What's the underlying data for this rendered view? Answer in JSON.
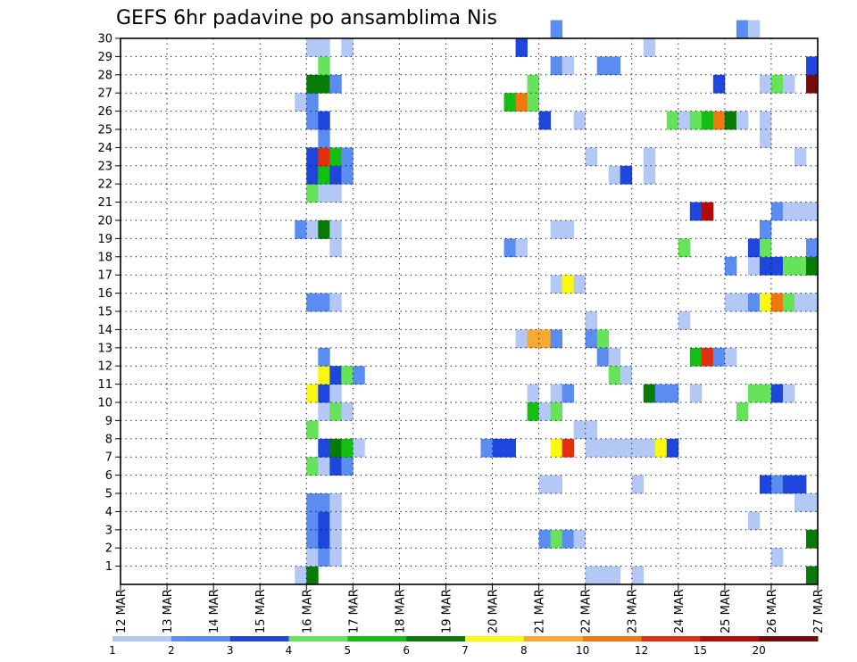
{
  "chart_data": {
    "type": "heatmap",
    "title": "GEFS 6hr padavine po ansamblima Nis",
    "xlabel": "",
    "ylabel": "",
    "x_tick_labels": [
      "12 MAR",
      "13 MAR",
      "14 MAR",
      "15 MAR",
      "16 MAR",
      "17 MAR",
      "18 MAR",
      "19 MAR",
      "20 MAR",
      "21 MAR",
      "22 MAR",
      "23 MAR",
      "24 MAR",
      "25 MAR",
      "26 MAR",
      "27 MAR"
    ],
    "y_tick_labels": [
      "1",
      "2",
      "3",
      "4",
      "5",
      "6",
      "7",
      "8",
      "9",
      "10",
      "11",
      "12",
      "13",
      "14",
      "15",
      "16",
      "17",
      "18",
      "19",
      "20",
      "21",
      "22",
      "23",
      "24",
      "25",
      "26",
      "27",
      "28",
      "29",
      "30"
    ],
    "time_steps_per_day": 4,
    "ensemble_members": 30,
    "grid": "dotted",
    "colorbar": {
      "labels": [
        "1",
        "2",
        "3",
        "4",
        "5",
        "6",
        "7",
        "8",
        "10",
        "12",
        "15",
        "20"
      ],
      "colors": [
        "#b3c8f5",
        "#5b8cf0",
        "#1e46dc",
        "#66e35a",
        "#14be14",
        "#087a08",
        "#f8f810",
        "#f8aa30",
        "#f07810",
        "#e03010",
        "#b40a0a",
        "#780a0a"
      ]
    },
    "cells": [
      [
        15.75,
        0,
        0
      ],
      [
        16,
        0,
        5
      ],
      [
        16,
        1,
        0
      ],
      [
        16.25,
        1,
        1
      ],
      [
        16.5,
        1,
        0
      ],
      [
        16,
        2,
        1
      ],
      [
        16.25,
        2,
        2
      ],
      [
        16.5,
        2,
        0
      ],
      [
        16,
        3,
        1
      ],
      [
        16.25,
        3,
        2
      ],
      [
        16.5,
        3,
        0
      ],
      [
        16,
        4,
        1
      ],
      [
        16.25,
        4,
        1
      ],
      [
        16.5,
        4,
        0
      ],
      [
        16,
        6,
        3
      ],
      [
        16.25,
        6,
        0
      ],
      [
        16.5,
        6,
        2
      ],
      [
        16.75,
        6,
        1
      ],
      [
        16.25,
        7,
        2
      ],
      [
        16.5,
        7,
        5
      ],
      [
        16.75,
        7,
        4
      ],
      [
        17,
        7,
        0
      ],
      [
        16,
        8,
        3
      ],
      [
        16.25,
        9,
        0
      ],
      [
        16.5,
        9,
        3
      ],
      [
        16.75,
        9,
        0
      ],
      [
        16,
        10,
        6
      ],
      [
        16.25,
        10,
        2
      ],
      [
        16.5,
        10,
        0
      ],
      [
        16.25,
        11,
        6
      ],
      [
        16.5,
        11,
        2
      ],
      [
        16.75,
        11,
        3
      ],
      [
        17,
        11,
        1
      ],
      [
        16.25,
        12,
        1
      ],
      [
        16,
        15,
        1
      ],
      [
        16.25,
        15,
        1
      ],
      [
        16.5,
        15,
        0
      ],
      [
        16.5,
        18,
        0
      ],
      [
        15.75,
        19,
        1
      ],
      [
        16,
        19,
        0
      ],
      [
        16.25,
        19,
        5
      ],
      [
        16.5,
        19,
        0
      ],
      [
        16,
        21,
        3
      ],
      [
        16.25,
        21,
        0
      ],
      [
        16.5,
        21,
        0
      ],
      [
        16,
        22,
        2
      ],
      [
        16.25,
        22,
        4
      ],
      [
        16.5,
        22,
        2
      ],
      [
        16.75,
        22,
        1
      ],
      [
        16,
        23,
        2
      ],
      [
        16.25,
        23,
        9
      ],
      [
        16.5,
        23,
        4
      ],
      [
        16.75,
        23,
        1
      ],
      [
        16.25,
        24,
        1
      ],
      [
        16,
        25,
        1
      ],
      [
        16.25,
        25,
        2
      ],
      [
        15.75,
        26,
        0
      ],
      [
        16,
        26,
        1
      ],
      [
        16,
        27,
        5
      ],
      [
        16.25,
        27,
        5
      ],
      [
        16.5,
        27,
        1
      ],
      [
        16.25,
        28,
        3
      ],
      [
        16,
        29,
        0
      ],
      [
        16.25,
        29,
        0
      ],
      [
        16.75,
        29,
        0
      ],
      [
        20,
        7,
        2
      ],
      [
        20.25,
        7,
        2
      ],
      [
        19.75,
        7,
        1
      ],
      [
        20.25,
        18,
        1
      ],
      [
        20.5,
        18,
        0
      ],
      [
        20.5,
        13,
        0
      ],
      [
        20.75,
        13,
        7
      ],
      [
        21,
        13,
        7
      ],
      [
        21.25,
        13,
        1
      ],
      [
        20.75,
        10,
        0
      ],
      [
        21.25,
        10,
        0
      ],
      [
        21.5,
        10,
        1
      ],
      [
        20.75,
        9,
        4
      ],
      [
        21,
        9,
        0
      ],
      [
        21.25,
        9,
        3
      ],
      [
        21.25,
        7,
        6
      ],
      [
        21.5,
        7,
        9
      ],
      [
        21,
        2,
        1
      ],
      [
        21.25,
        2,
        3
      ],
      [
        21.5,
        2,
        1
      ],
      [
        21.75,
        2,
        0
      ],
      [
        21,
        5,
        0
      ],
      [
        21.25,
        5,
        0
      ],
      [
        21.25,
        16,
        0
      ],
      [
        21.5,
        16,
        6
      ],
      [
        21.75,
        16,
        0
      ],
      [
        21.25,
        19,
        0
      ],
      [
        21.5,
        19,
        0
      ],
      [
        20.25,
        26,
        4
      ],
      [
        20.5,
        26,
        8
      ],
      [
        20.75,
        26,
        3
      ],
      [
        20.75,
        27,
        3
      ],
      [
        20.5,
        29,
        2
      ],
      [
        21,
        25,
        2
      ],
      [
        21.75,
        25,
        0
      ],
      [
        21.25,
        28,
        1
      ],
      [
        21.5,
        28,
        0
      ],
      [
        21.25,
        30,
        1
      ],
      [
        21.75,
        8,
        0
      ],
      [
        22,
        8,
        0
      ],
      [
        22,
        14,
        0
      ],
      [
        22,
        13,
        1
      ],
      [
        22.25,
        13,
        3
      ],
      [
        22.25,
        12,
        1
      ],
      [
        22.5,
        12,
        0
      ],
      [
        22.5,
        11,
        3
      ],
      [
        22.75,
        11,
        0
      ],
      [
        22,
        7,
        0
      ],
      [
        22.25,
        7,
        0
      ],
      [
        22.5,
        7,
        0
      ],
      [
        22.75,
        7,
        0
      ],
      [
        23,
        7,
        0
      ],
      [
        23.25,
        7,
        0
      ],
      [
        23.5,
        7,
        6
      ],
      [
        23.75,
        7,
        2
      ],
      [
        22,
        0,
        0
      ],
      [
        22.25,
        0,
        0
      ],
      [
        22.5,
        0,
        0
      ],
      [
        23,
        0,
        0
      ],
      [
        23,
        5,
        0
      ],
      [
        23.25,
        10,
        5
      ],
      [
        23.5,
        10,
        1
      ],
      [
        23.75,
        10,
        1
      ],
      [
        24.25,
        10,
        0
      ],
      [
        22.5,
        22,
        0
      ],
      [
        22.75,
        22,
        2
      ],
      [
        23.25,
        22,
        0
      ],
      [
        22,
        23,
        0
      ],
      [
        23.25,
        23,
        0
      ],
      [
        22.25,
        28,
        1
      ],
      [
        22.5,
        28,
        1
      ],
      [
        23.25,
        29,
        0
      ],
      [
        24,
        14,
        0
      ],
      [
        24,
        18,
        3
      ],
      [
        24.25,
        12,
        4
      ],
      [
        24.5,
        12,
        9
      ],
      [
        24.75,
        12,
        1
      ],
      [
        25,
        12,
        0
      ],
      [
        24.25,
        20,
        2
      ],
      [
        24.5,
        20,
        10
      ],
      [
        23.75,
        25,
        3
      ],
      [
        24,
        25,
        0
      ],
      [
        24.25,
        25,
        3
      ],
      [
        24.5,
        25,
        4
      ],
      [
        24.75,
        25,
        8
      ],
      [
        25,
        25,
        5
      ],
      [
        25.25,
        25,
        0
      ],
      [
        24.75,
        27,
        2
      ],
      [
        25,
        17,
        1
      ],
      [
        25.25,
        9,
        3
      ],
      [
        25.5,
        10,
        3
      ],
      [
        25.75,
        10,
        3
      ],
      [
        26,
        10,
        2
      ],
      [
        26.25,
        10,
        0
      ],
      [
        25.5,
        3,
        0
      ],
      [
        25.75,
        5,
        2
      ],
      [
        26,
        5,
        1
      ],
      [
        26.25,
        5,
        2
      ],
      [
        26.5,
        5,
        2
      ],
      [
        26.5,
        4,
        0
      ],
      [
        26.75,
        4,
        0
      ],
      [
        26,
        1,
        0
      ],
      [
        26.75,
        2,
        5
      ],
      [
        26.75,
        0,
        5
      ],
      [
        27,
        0,
        2
      ],
      [
        25,
        15,
        0
      ],
      [
        25.25,
        15,
        0
      ],
      [
        25.5,
        15,
        1
      ],
      [
        25.75,
        15,
        6
      ],
      [
        26,
        15,
        8
      ],
      [
        26.25,
        15,
        3
      ],
      [
        26.5,
        15,
        0
      ],
      [
        26.75,
        15,
        0
      ],
      [
        25.5,
        17,
        0
      ],
      [
        25.75,
        17,
        2
      ],
      [
        26,
        17,
        2
      ],
      [
        26.25,
        17,
        3
      ],
      [
        26.5,
        17,
        3
      ],
      [
        26.75,
        17,
        5
      ],
      [
        27,
        17,
        1
      ],
      [
        25.5,
        18,
        2
      ],
      [
        25.75,
        18,
        3
      ],
      [
        26.75,
        18,
        1
      ],
      [
        25.75,
        19,
        1
      ],
      [
        27,
        19,
        0
      ],
      [
        26,
        20,
        1
      ],
      [
        26.25,
        20,
        0
      ],
      [
        26.5,
        20,
        0
      ],
      [
        26.75,
        20,
        0
      ],
      [
        26.5,
        23,
        0
      ],
      [
        25.75,
        24,
        0
      ],
      [
        25.75,
        25,
        0
      ],
      [
        25.75,
        27,
        0
      ],
      [
        26,
        27,
        3
      ],
      [
        26.25,
        27,
        0
      ],
      [
        26.75,
        27,
        11
      ],
      [
        27,
        27,
        4
      ],
      [
        26.75,
        28,
        2
      ],
      [
        27,
        28,
        1
      ],
      [
        25.25,
        30,
        1
      ],
      [
        25.5,
        30,
        0
      ]
    ]
  }
}
